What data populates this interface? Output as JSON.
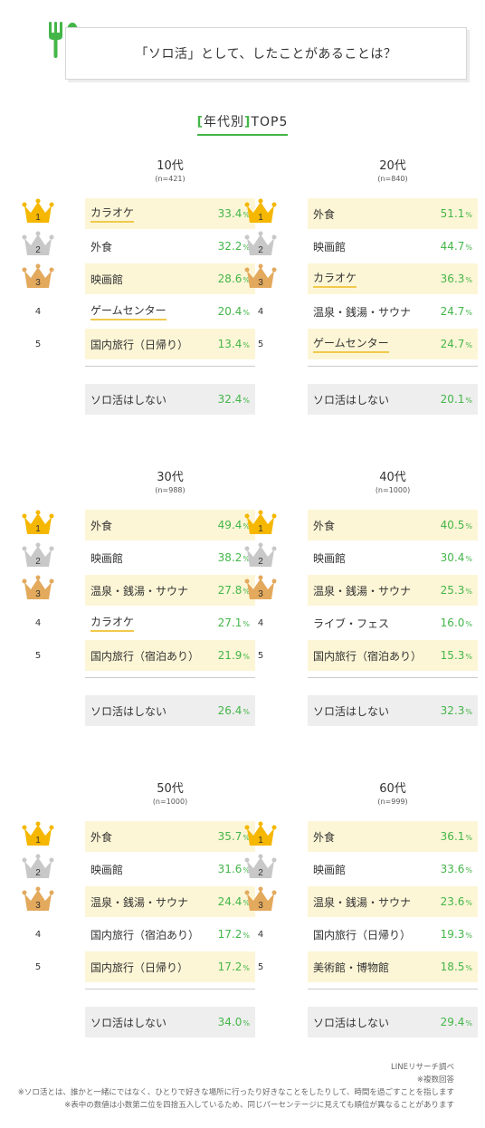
{
  "title": "「ソロ活」として、したことがあることは？",
  "subhead": {
    "open": "[",
    "text": "年代別",
    "close": "]",
    "suffix": " TOP5"
  },
  "icons": {
    "logo": "fork-spoon-icon",
    "rank_1": "gold-crown-icon",
    "rank_2": "silver-crown-icon",
    "rank_3": "bronze-crown-icon"
  },
  "colors": {
    "accent": "#44b649",
    "highlight": "#fdf6d6",
    "gold": "#f5b700",
    "silver": "#c8c8c8",
    "bronze": "#e3a95c"
  },
  "unit": "%",
  "groups": [
    {
      "age": "10代",
      "n": "(n=421)",
      "items": [
        {
          "rank": "1",
          "label": "カラオケ",
          "value": "33.4",
          "underline": true
        },
        {
          "rank": "2",
          "label": "外食",
          "value": "32.2",
          "underline": false
        },
        {
          "rank": "3",
          "label": "映画館",
          "value": "28.6",
          "underline": false
        },
        {
          "rank": "4",
          "label": "ゲームセンター",
          "value": "20.4",
          "underline": true
        },
        {
          "rank": "5",
          "label": "国内旅行（日帰り）",
          "value": "13.4",
          "underline": false
        }
      ],
      "none": {
        "label": "ソロ活はしない",
        "value": "32.4"
      }
    },
    {
      "age": "20代",
      "n": "(n=840)",
      "items": [
        {
          "rank": "1",
          "label": "外食",
          "value": "51.1",
          "underline": false
        },
        {
          "rank": "2",
          "label": "映画館",
          "value": "44.7",
          "underline": false
        },
        {
          "rank": "3",
          "label": "カラオケ",
          "value": "36.3",
          "underline": true
        },
        {
          "rank": "4",
          "label": "温泉・銭湯・サウナ",
          "value": "24.7",
          "underline": false
        },
        {
          "rank": "5",
          "label": "ゲームセンター",
          "value": "24.7",
          "underline": true
        }
      ],
      "none": {
        "label": "ソロ活はしない",
        "value": "20.1"
      }
    },
    {
      "age": "30代",
      "n": "(n=988)",
      "items": [
        {
          "rank": "1",
          "label": "外食",
          "value": "49.4",
          "underline": false
        },
        {
          "rank": "2",
          "label": "映画館",
          "value": "38.2",
          "underline": false
        },
        {
          "rank": "3",
          "label": "温泉・銭湯・サウナ",
          "value": "27.8",
          "underline": false
        },
        {
          "rank": "4",
          "label": "カラオケ",
          "value": "27.1",
          "underline": true
        },
        {
          "rank": "5",
          "label": "国内旅行（宿泊あり）",
          "value": "21.9",
          "underline": false
        }
      ],
      "none": {
        "label": "ソロ活はしない",
        "value": "26.4"
      }
    },
    {
      "age": "40代",
      "n": "(n=1000)",
      "items": [
        {
          "rank": "1",
          "label": "外食",
          "value": "40.5",
          "underline": false
        },
        {
          "rank": "2",
          "label": "映画館",
          "value": "30.4",
          "underline": false
        },
        {
          "rank": "3",
          "label": "温泉・銭湯・サウナ",
          "value": "25.3",
          "underline": false
        },
        {
          "rank": "4",
          "label": "ライブ・フェス",
          "value": "16.0",
          "underline": false
        },
        {
          "rank": "5",
          "label": "国内旅行（宿泊あり）",
          "value": "15.3",
          "underline": false
        }
      ],
      "none": {
        "label": "ソロ活はしない",
        "value": "32.3"
      }
    },
    {
      "age": "50代",
      "n": "(n=1000)",
      "items": [
        {
          "rank": "1",
          "label": "外食",
          "value": "35.7",
          "underline": false
        },
        {
          "rank": "2",
          "label": "映画館",
          "value": "31.6",
          "underline": false
        },
        {
          "rank": "3",
          "label": "温泉・銭湯・サウナ",
          "value": "24.4",
          "underline": false
        },
        {
          "rank": "4",
          "label": "国内旅行（宿泊あり）",
          "value": "17.2",
          "underline": false
        },
        {
          "rank": "5",
          "label": "国内旅行（日帰り）",
          "value": "17.2",
          "underline": false
        }
      ],
      "none": {
        "label": "ソロ活はしない",
        "value": "34.0"
      }
    },
    {
      "age": "60代",
      "n": "(n=999)",
      "items": [
        {
          "rank": "1",
          "label": "外食",
          "value": "36.1",
          "underline": false
        },
        {
          "rank": "2",
          "label": "映画館",
          "value": "33.6",
          "underline": false
        },
        {
          "rank": "3",
          "label": "温泉・銭湯・サウナ",
          "value": "23.6",
          "underline": false
        },
        {
          "rank": "4",
          "label": "国内旅行（日帰り）",
          "value": "19.3",
          "underline": false
        },
        {
          "rank": "5",
          "label": "美術館・博物館",
          "value": "18.5",
          "underline": false
        }
      ],
      "none": {
        "label": "ソロ活はしない",
        "value": "29.4"
      }
    }
  ],
  "footer": {
    "source": "LINEリサーチ調べ",
    "note1": "※複数回答",
    "note2": "※ソロ活とは、誰かと一緒にではなく、ひとりで好きな場所に行ったり好きなことをしたりして、時間を過ごすことを指します",
    "note3": "※表中の数値は小数第二位を四捨五入しているため、同じパーセンテージに見えても順位が異なることがあります"
  }
}
